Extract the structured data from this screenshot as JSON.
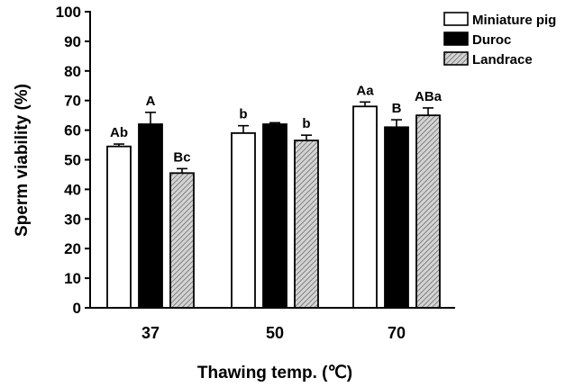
{
  "chart_data": {
    "type": "bar",
    "xlabel": "Thawing temp. (℃)",
    "ylabel": "Sperm viability (%)",
    "ylim": [
      0,
      100
    ],
    "yticks": [
      0,
      10,
      20,
      30,
      40,
      50,
      60,
      70,
      80,
      90,
      100
    ],
    "categories": [
      "37",
      "50",
      "70"
    ],
    "legend_position": "top-right",
    "grid": false,
    "series": [
      {
        "name": "Miniature pig",
        "fill": "#ffffff",
        "values": [
          54.5,
          59,
          68
        ],
        "errors": [
          0.8,
          2.5,
          1.5
        ],
        "labels": [
          "Ab",
          "b",
          "Aa"
        ]
      },
      {
        "name": "Duroc",
        "fill": "#000000",
        "values": [
          62,
          62,
          61
        ],
        "errors": [
          4,
          0.5,
          2.5
        ],
        "labels": [
          "A",
          "",
          "B"
        ]
      },
      {
        "name": "Landrace",
        "fill": "#bdbdbd",
        "values": [
          45.5,
          56.5,
          65
        ],
        "errors": [
          1.5,
          1.8,
          2.5
        ],
        "labels": [
          "Bc",
          "b",
          "ABa"
        ]
      }
    ]
  }
}
